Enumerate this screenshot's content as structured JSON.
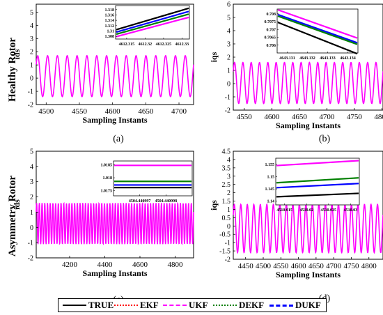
{
  "row_labels": [
    "Healthy Rotor",
    "Asymmetry Rotor"
  ],
  "legend": [
    {
      "name": "TRUE",
      "color": "#000000",
      "dash": "solid"
    },
    {
      "name": "EKF",
      "color": "#ff0000",
      "dash": "dot"
    },
    {
      "name": "UKF",
      "color": "#ff00ff",
      "dash": "dash"
    },
    {
      "name": "DEKF",
      "color": "#008000",
      "dash": "dot"
    },
    {
      "name": "DUKF",
      "color": "#0000ff",
      "dash": "dashdot"
    }
  ],
  "chart_data": [
    {
      "type": "line",
      "panel_label": "(a)",
      "xlabel": "Sampling Instants",
      "ylabel": "ids",
      "xlim": [
        4485,
        4722
      ],
      "ylim": [
        -2,
        5.6
      ],
      "xticks": [
        4500,
        4550,
        4600,
        4650,
        4700
      ],
      "yticks": [
        -2,
        -1,
        0,
        1,
        2,
        3,
        4,
        5
      ],
      "signal": {
        "amplitude": 1.55,
        "offset": 0.15,
        "cycles": 16
      },
      "inset": {
        "xlim": [
          4612.312,
          4612.332
        ],
        "ylim": [
          1.307,
          1.3195
        ],
        "xticks": [
          4612.315,
          4612.32,
          4612.325,
          4612.33
        ],
        "yticks": [
          1.308,
          1.31,
          1.312,
          1.314,
          1.316,
          1.318
        ],
        "xtick_labels": [
          "4612.315",
          "4612.32",
          "4612.325",
          "4612.33"
        ],
        "ytick_labels": [
          "1.308",
          "1.31",
          "1.312",
          "1.314",
          "1.316",
          "1.318"
        ],
        "lines": [
          {
            "series": "TRUE",
            "y0": 1.3105,
            "y1": 1.3185
          },
          {
            "series": "DUKF",
            "y0": 1.3096,
            "y1": 1.3173
          },
          {
            "series": "DEKF",
            "y0": 1.3088,
            "y1": 1.3163
          },
          {
            "series": "UKF",
            "y0": 1.3079,
            "y1": 1.3151
          }
        ]
      }
    },
    {
      "type": "line",
      "panel_label": "(b)",
      "xlabel": "Sampling Instants",
      "ylabel": "iqs",
      "xlim": [
        4530,
        4802
      ],
      "ylim": [
        -2,
        6
      ],
      "xticks": [
        4550,
        4600,
        4650,
        4700,
        4750,
        4800
      ],
      "yticks": [
        -2,
        -1,
        0,
        1,
        2,
        3,
        4,
        5,
        6
      ],
      "signal": {
        "amplitude": 1.55,
        "offset": 0.05,
        "cycles": 18
      },
      "inset": {
        "xlim": [
          4643.1305,
          4643.1345
        ],
        "ylim": [
          0.7055,
          0.7083
        ],
        "xticks": [
          4643.131,
          4643.132,
          4643.133,
          4643.134
        ],
        "yticks": [
          0.706,
          0.7065,
          0.707,
          0.7075,
          0.708
        ],
        "xtick_labels": [
          "4643.131",
          "4643.132",
          "4643.133",
          "4643.134"
        ],
        "ytick_labels": [
          "0.706",
          "0.7065",
          "0.707",
          "0.7075",
          "0.708"
        ],
        "lines": [
          {
            "series": "UKF",
            "y0": 0.70825,
            "y1": 0.70645
          },
          {
            "series": "DUKF",
            "y0": 0.70795,
            "y1": 0.70615
          },
          {
            "series": "DEKF",
            "y0": 0.70785,
            "y1": 0.70605
          },
          {
            "series": "TRUE",
            "y0": 0.70745,
            "y1": 0.70545
          }
        ]
      }
    },
    {
      "type": "line",
      "panel_label": "(c)",
      "xlabel": "Sampling Instants",
      "ylabel": "ids",
      "xlim": [
        4010,
        4905
      ],
      "ylim": [
        -2,
        5
      ],
      "xticks": [
        4200,
        4400,
        4600,
        4800
      ],
      "yticks": [
        -2,
        -1,
        0,
        1,
        2,
        3,
        4,
        5
      ],
      "signal": {
        "amplitude": 1.35,
        "offset": 0.25,
        "cycles": 58
      },
      "inset": {
        "xlim": [
          4504.440996,
          4504.440999
        ],
        "ylim": [
          1.0173,
          1.01865
        ],
        "xticks": [
          4504.440997,
          4504.440998
        ],
        "yticks": [
          1.0175,
          1.018,
          1.0185
        ],
        "xtick_labels": [
          "4504.440997",
          "4504.440998"
        ],
        "ytick_labels": [
          "1.0175",
          "1.018",
          "1.0185"
        ],
        "lines": [
          {
            "series": "UKF",
            "y0": 1.01848,
            "y1": 1.01848
          },
          {
            "series": "DEKF",
            "y0": 1.01786,
            "y1": 1.01786
          },
          {
            "series": "DUKF",
            "y0": 1.01772,
            "y1": 1.01772
          },
          {
            "series": "TRUE",
            "y0": 1.01762,
            "y1": 1.01762
          }
        ]
      }
    },
    {
      "type": "line",
      "panel_label": "(d)",
      "xlabel": "Sampling Instants",
      "ylabel": "iqs",
      "xlim": [
        4415,
        4840
      ],
      "ylim": [
        -2,
        4.5
      ],
      "xticks": [
        4450,
        4500,
        4550,
        4600,
        4650,
        4700,
        4750,
        4800
      ],
      "yticks": [
        -2,
        -1.5,
        -1,
        -0.5,
        0,
        0.5,
        1,
        1.5,
        2,
        2.5,
        3,
        3.5,
        4,
        4.5
      ],
      "signal": {
        "amplitude": 1.45,
        "offset": -0.15,
        "cycles": 23
      },
      "inset": {
        "xlim": [
          4510.013,
          4510.032
        ],
        "ylim": [
          1.1385,
          1.1575
        ],
        "xticks": [
          4510.015,
          4510.02,
          4510.025,
          4510.03
        ],
        "yticks": [
          1.14,
          1.145,
          1.15,
          1.155
        ],
        "xtick_labels": [
          "4510.015",
          "4510.02",
          "4510.025",
          "4510.03"
        ],
        "ytick_labels": [
          "1.14",
          "1.145",
          "1.15",
          "1.155"
        ],
        "lines": [
          {
            "series": "UKF",
            "y0": 1.1545,
            "y1": 1.1565
          },
          {
            "series": "DEKF",
            "y0": 1.1475,
            "y1": 1.1495
          },
          {
            "series": "DUKF",
            "y0": 1.1455,
            "y1": 1.1472
          },
          {
            "series": "TRUE",
            "y0": 1.1418,
            "y1": 1.1432
          }
        ]
      }
    }
  ]
}
